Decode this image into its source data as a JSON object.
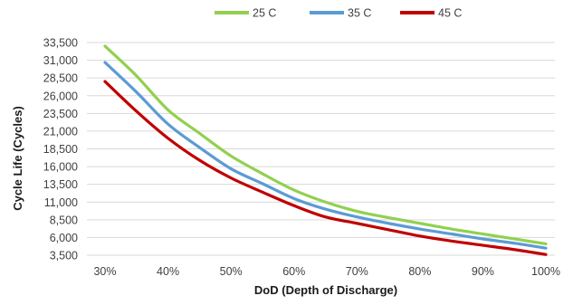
{
  "chart_data": {
    "type": "line",
    "title": "",
    "xlabel": "DoD (Depth of Discharge)",
    "ylabel": "Cycle Life (Cycles)",
    "x": [
      30,
      35,
      40,
      45,
      50,
      55,
      60,
      65,
      70,
      75,
      80,
      85,
      90,
      95,
      100
    ],
    "x_tick_values": [
      30,
      40,
      50,
      60,
      70,
      80,
      90,
      100
    ],
    "x_tick_labels": [
      "30%",
      "40%",
      "50%",
      "60%",
      "70%",
      "80%",
      "90%",
      "100%"
    ],
    "xlim": [
      30,
      100
    ],
    "ylim": [
      3500,
      33500
    ],
    "y_tick_values": [
      3500,
      6000,
      8500,
      11000,
      13500,
      16000,
      18500,
      21000,
      23500,
      26000,
      28500,
      31000,
      33500
    ],
    "y_tick_labels": [
      "3,500",
      "6,000",
      "8,500",
      "11,000",
      "13,500",
      "16,000",
      "18,500",
      "21,000",
      "23,500",
      "26,000",
      "28,500",
      "31,000",
      "33,500"
    ],
    "grid": true,
    "legend_position": "top-right",
    "series": [
      {
        "name": "25 C",
        "color": "#92D050",
        "values": [
          33000,
          28800,
          24000,
          20700,
          17500,
          15000,
          12700,
          11000,
          9700,
          8800,
          8000,
          7200,
          6500,
          5800,
          5100
        ]
      },
      {
        "name": "35 C",
        "color": "#5B9BD5",
        "values": [
          30700,
          26500,
          22000,
          18700,
          15700,
          13600,
          11500,
          10000,
          8900,
          8000,
          7200,
          6500,
          5800,
          5200,
          4500
        ]
      },
      {
        "name": "45 C",
        "color": "#C00000",
        "values": [
          28000,
          23800,
          20000,
          16900,
          14400,
          12400,
          10500,
          8900,
          8000,
          7100,
          6200,
          5500,
          4900,
          4300,
          3600
        ]
      }
    ]
  }
}
